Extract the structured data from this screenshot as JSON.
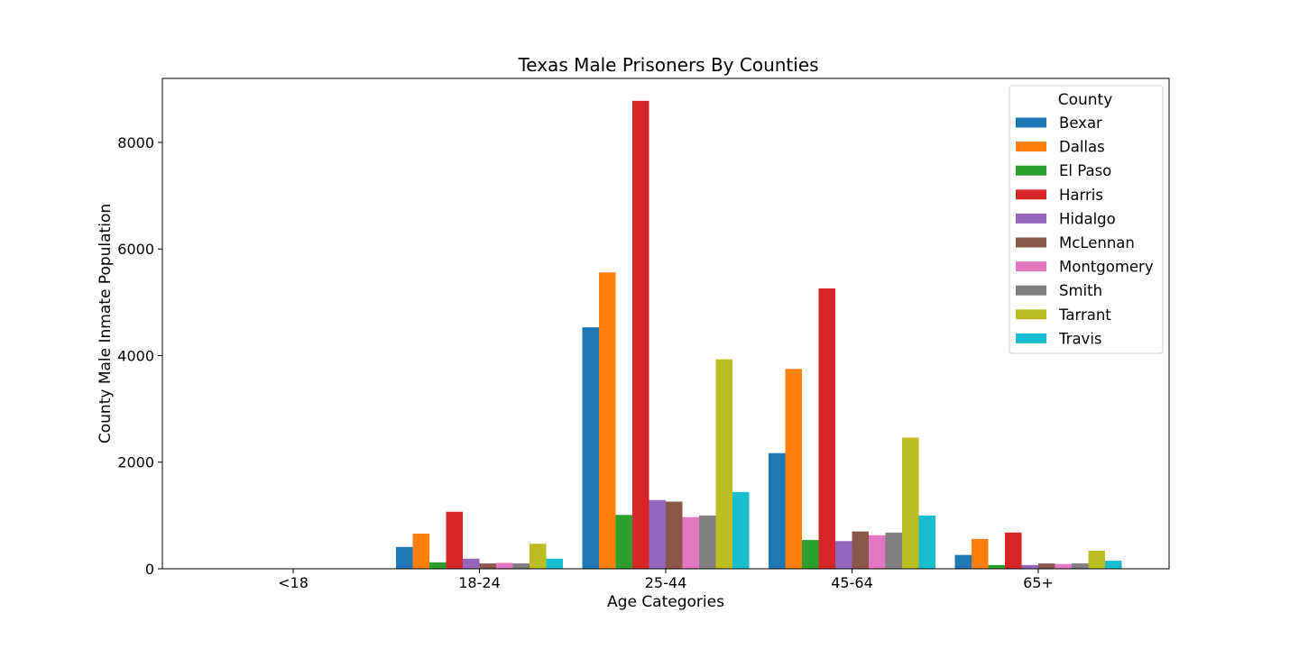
{
  "chart_data": {
    "type": "bar",
    "title": "Texas Male Prisoners By Counties",
    "xlabel": "Age Categories",
    "ylabel": "County Male Inmate Population",
    "categories": [
      "<18",
      "18-24",
      "25-44",
      "45-64",
      "65+"
    ],
    "ylim": [
      0,
      9200
    ],
    "yticks": [
      0,
      2000,
      4000,
      6000,
      8000
    ],
    "grid": false,
    "legend": {
      "title": "County",
      "placement": "top-right"
    },
    "series": [
      {
        "name": "Bexar",
        "color": "#1f77b4",
        "values": [
          0,
          410,
          4530,
          2170,
          260
        ]
      },
      {
        "name": "Dallas",
        "color": "#ff7f0e",
        "values": [
          0,
          660,
          5560,
          3750,
          560
        ]
      },
      {
        "name": "El Paso",
        "color": "#2ca02c",
        "values": [
          0,
          120,
          1010,
          540,
          70
        ]
      },
      {
        "name": "Harris",
        "color": "#d62728",
        "values": [
          0,
          1070,
          8780,
          5260,
          680
        ]
      },
      {
        "name": "Hidalgo",
        "color": "#9467bd",
        "values": [
          0,
          190,
          1290,
          520,
          70
        ]
      },
      {
        "name": "McLennan",
        "color": "#8c564b",
        "values": [
          0,
          100,
          1260,
          700,
          100
        ]
      },
      {
        "name": "Montgomery",
        "color": "#e377c2",
        "values": [
          0,
          110,
          970,
          630,
          90
        ]
      },
      {
        "name": "Smith",
        "color": "#7f7f7f",
        "values": [
          0,
          100,
          1000,
          680,
          100
        ]
      },
      {
        "name": "Tarrant",
        "color": "#bcbd22",
        "values": [
          0,
          470,
          3930,
          2460,
          340
        ]
      },
      {
        "name": "Travis",
        "color": "#17becf",
        "values": [
          0,
          190,
          1440,
          1000,
          150
        ]
      }
    ]
  }
}
